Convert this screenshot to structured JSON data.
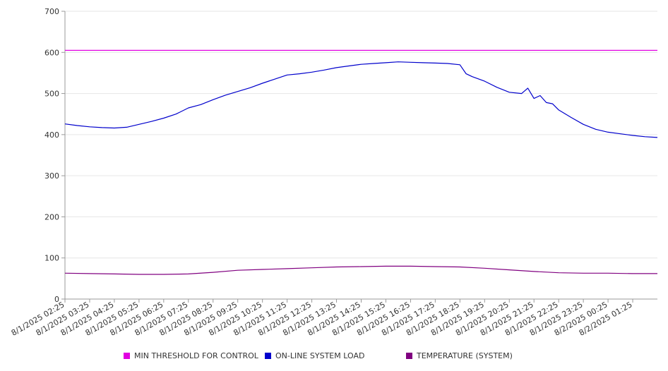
{
  "chart_data": {
    "type": "line",
    "title": "",
    "xlabel": "",
    "ylabel": "",
    "ylim": [
      0,
      700
    ],
    "yticks": [
      "0",
      "100",
      "200",
      "300",
      "400",
      "500",
      "600",
      "700"
    ],
    "grid": true,
    "legend_position": "bottom",
    "x_start_tick": "8/1/2025 02:25",
    "x_end_tick": "8/2/2025 02:25",
    "xticks": [
      "8/1/2025 02:25",
      "8/1/2025 03:25",
      "8/1/2025 04:25",
      "8/1/2025 05:25",
      "8/1/2025 06:25",
      "8/1/2025 07:25",
      "8/1/2025 08:25",
      "8/1/2025 09:25",
      "8/1/2025 10:25",
      "8/1/2025 11:25",
      "8/1/2025 12:25",
      "8/1/2025 13:25",
      "8/1/2025 14:25",
      "8/1/2025 15:25",
      "8/1/2025 16:25",
      "8/1/2025 17:25",
      "8/1/2025 18:25",
      "8/1/2025 19:25",
      "8/1/2025 20:25",
      "8/1/2025 21:25",
      "8/1/2025 22:25",
      "8/1/2025 23:25",
      "8/2/2025 00:25",
      "8/2/2025 01:25"
    ],
    "series": [
      {
        "name": "MIN THRESHOLD FOR CONTROL",
        "color": "#e100e1",
        "x": [
          "8/1/2025 02:25",
          "8/2/2025 02:25"
        ],
        "values": [
          605,
          605
        ]
      },
      {
        "name": "ON-LINE SYSTEM LOAD",
        "color": "#0000cc",
        "x": [
          "8/1/2025 02:25",
          "8/1/2025 02:55",
          "8/1/2025 03:25",
          "8/1/2025 03:55",
          "8/1/2025 04:25",
          "8/1/2025 04:55",
          "8/1/2025 05:25",
          "8/1/2025 05:55",
          "8/1/2025 06:25",
          "8/1/2025 06:55",
          "8/1/2025 07:25",
          "8/1/2025 07:55",
          "8/1/2025 08:25",
          "8/1/2025 08:55",
          "8/1/2025 09:25",
          "8/1/2025 09:55",
          "8/1/2025 10:25",
          "8/1/2025 10:55",
          "8/1/2025 11:25",
          "8/1/2025 11:55",
          "8/1/2025 12:25",
          "8/1/2025 12:55",
          "8/1/2025 13:25",
          "8/1/2025 13:55",
          "8/1/2025 14:25",
          "8/1/2025 14:55",
          "8/1/2025 15:25",
          "8/1/2025 15:55",
          "8/1/2025 16:25",
          "8/1/2025 16:55",
          "8/1/2025 17:25",
          "8/1/2025 17:55",
          "8/1/2025 18:25",
          "8/1/2025 18:40",
          "8/1/2025 18:55",
          "8/1/2025 19:25",
          "8/1/2025 19:55",
          "8/1/2025 20:25",
          "8/1/2025 20:55",
          "8/1/2025 21:10",
          "8/1/2025 21:25",
          "8/1/2025 21:40",
          "8/1/2025 21:55",
          "8/1/2025 22:10",
          "8/1/2025 22:25",
          "8/1/2025 22:55",
          "8/1/2025 23:25",
          "8/1/2025 23:55",
          "8/2/2025 00:25",
          "8/2/2025 00:55",
          "8/2/2025 01:25",
          "8/2/2025 01:55",
          "8/2/2025 02:25"
        ],
        "values": [
          426,
          422,
          419,
          417,
          416,
          418,
          425,
          432,
          440,
          450,
          465,
          473,
          485,
          496,
          505,
          514,
          525,
          535,
          545,
          548,
          552,
          557,
          563,
          567,
          571,
          573,
          575,
          577,
          576,
          575,
          574,
          573,
          570,
          548,
          541,
          530,
          515,
          503,
          500,
          513,
          488,
          495,
          478,
          475,
          460,
          442,
          425,
          413,
          406,
          402,
          398,
          395,
          393
        ]
      },
      {
        "name": "TEMPERATURE (SYSTEM)",
        "color": "#800080",
        "x": [
          "8/1/2025 02:25",
          "8/1/2025 03:25",
          "8/1/2025 04:25",
          "8/1/2025 05:25",
          "8/1/2025 06:25",
          "8/1/2025 07:25",
          "8/1/2025 08:25",
          "8/1/2025 09:25",
          "8/1/2025 10:25",
          "8/1/2025 11:25",
          "8/1/2025 12:25",
          "8/1/2025 13:25",
          "8/1/2025 14:25",
          "8/1/2025 15:25",
          "8/1/2025 16:25",
          "8/1/2025 17:25",
          "8/1/2025 18:25",
          "8/1/2025 19:25",
          "8/1/2025 20:25",
          "8/1/2025 21:25",
          "8/1/2025 22:25",
          "8/1/2025 23:25",
          "8/2/2025 00:25",
          "8/2/2025 01:25",
          "8/2/2025 02:25"
        ],
        "values": [
          63,
          62,
          61,
          60,
          60,
          61,
          65,
          70,
          72,
          74,
          76,
          78,
          79,
          80,
          80,
          79,
          78,
          75,
          71,
          67,
          64,
          63,
          63,
          62,
          62
        ]
      }
    ]
  },
  "legend": [
    {
      "label": "MIN THRESHOLD FOR CONTROL",
      "color": "#e100e1"
    },
    {
      "label": "ON-LINE SYSTEM LOAD",
      "color": "#0000cc"
    },
    {
      "label": "TEMPERATURE (SYSTEM)",
      "color": "#800080"
    }
  ]
}
